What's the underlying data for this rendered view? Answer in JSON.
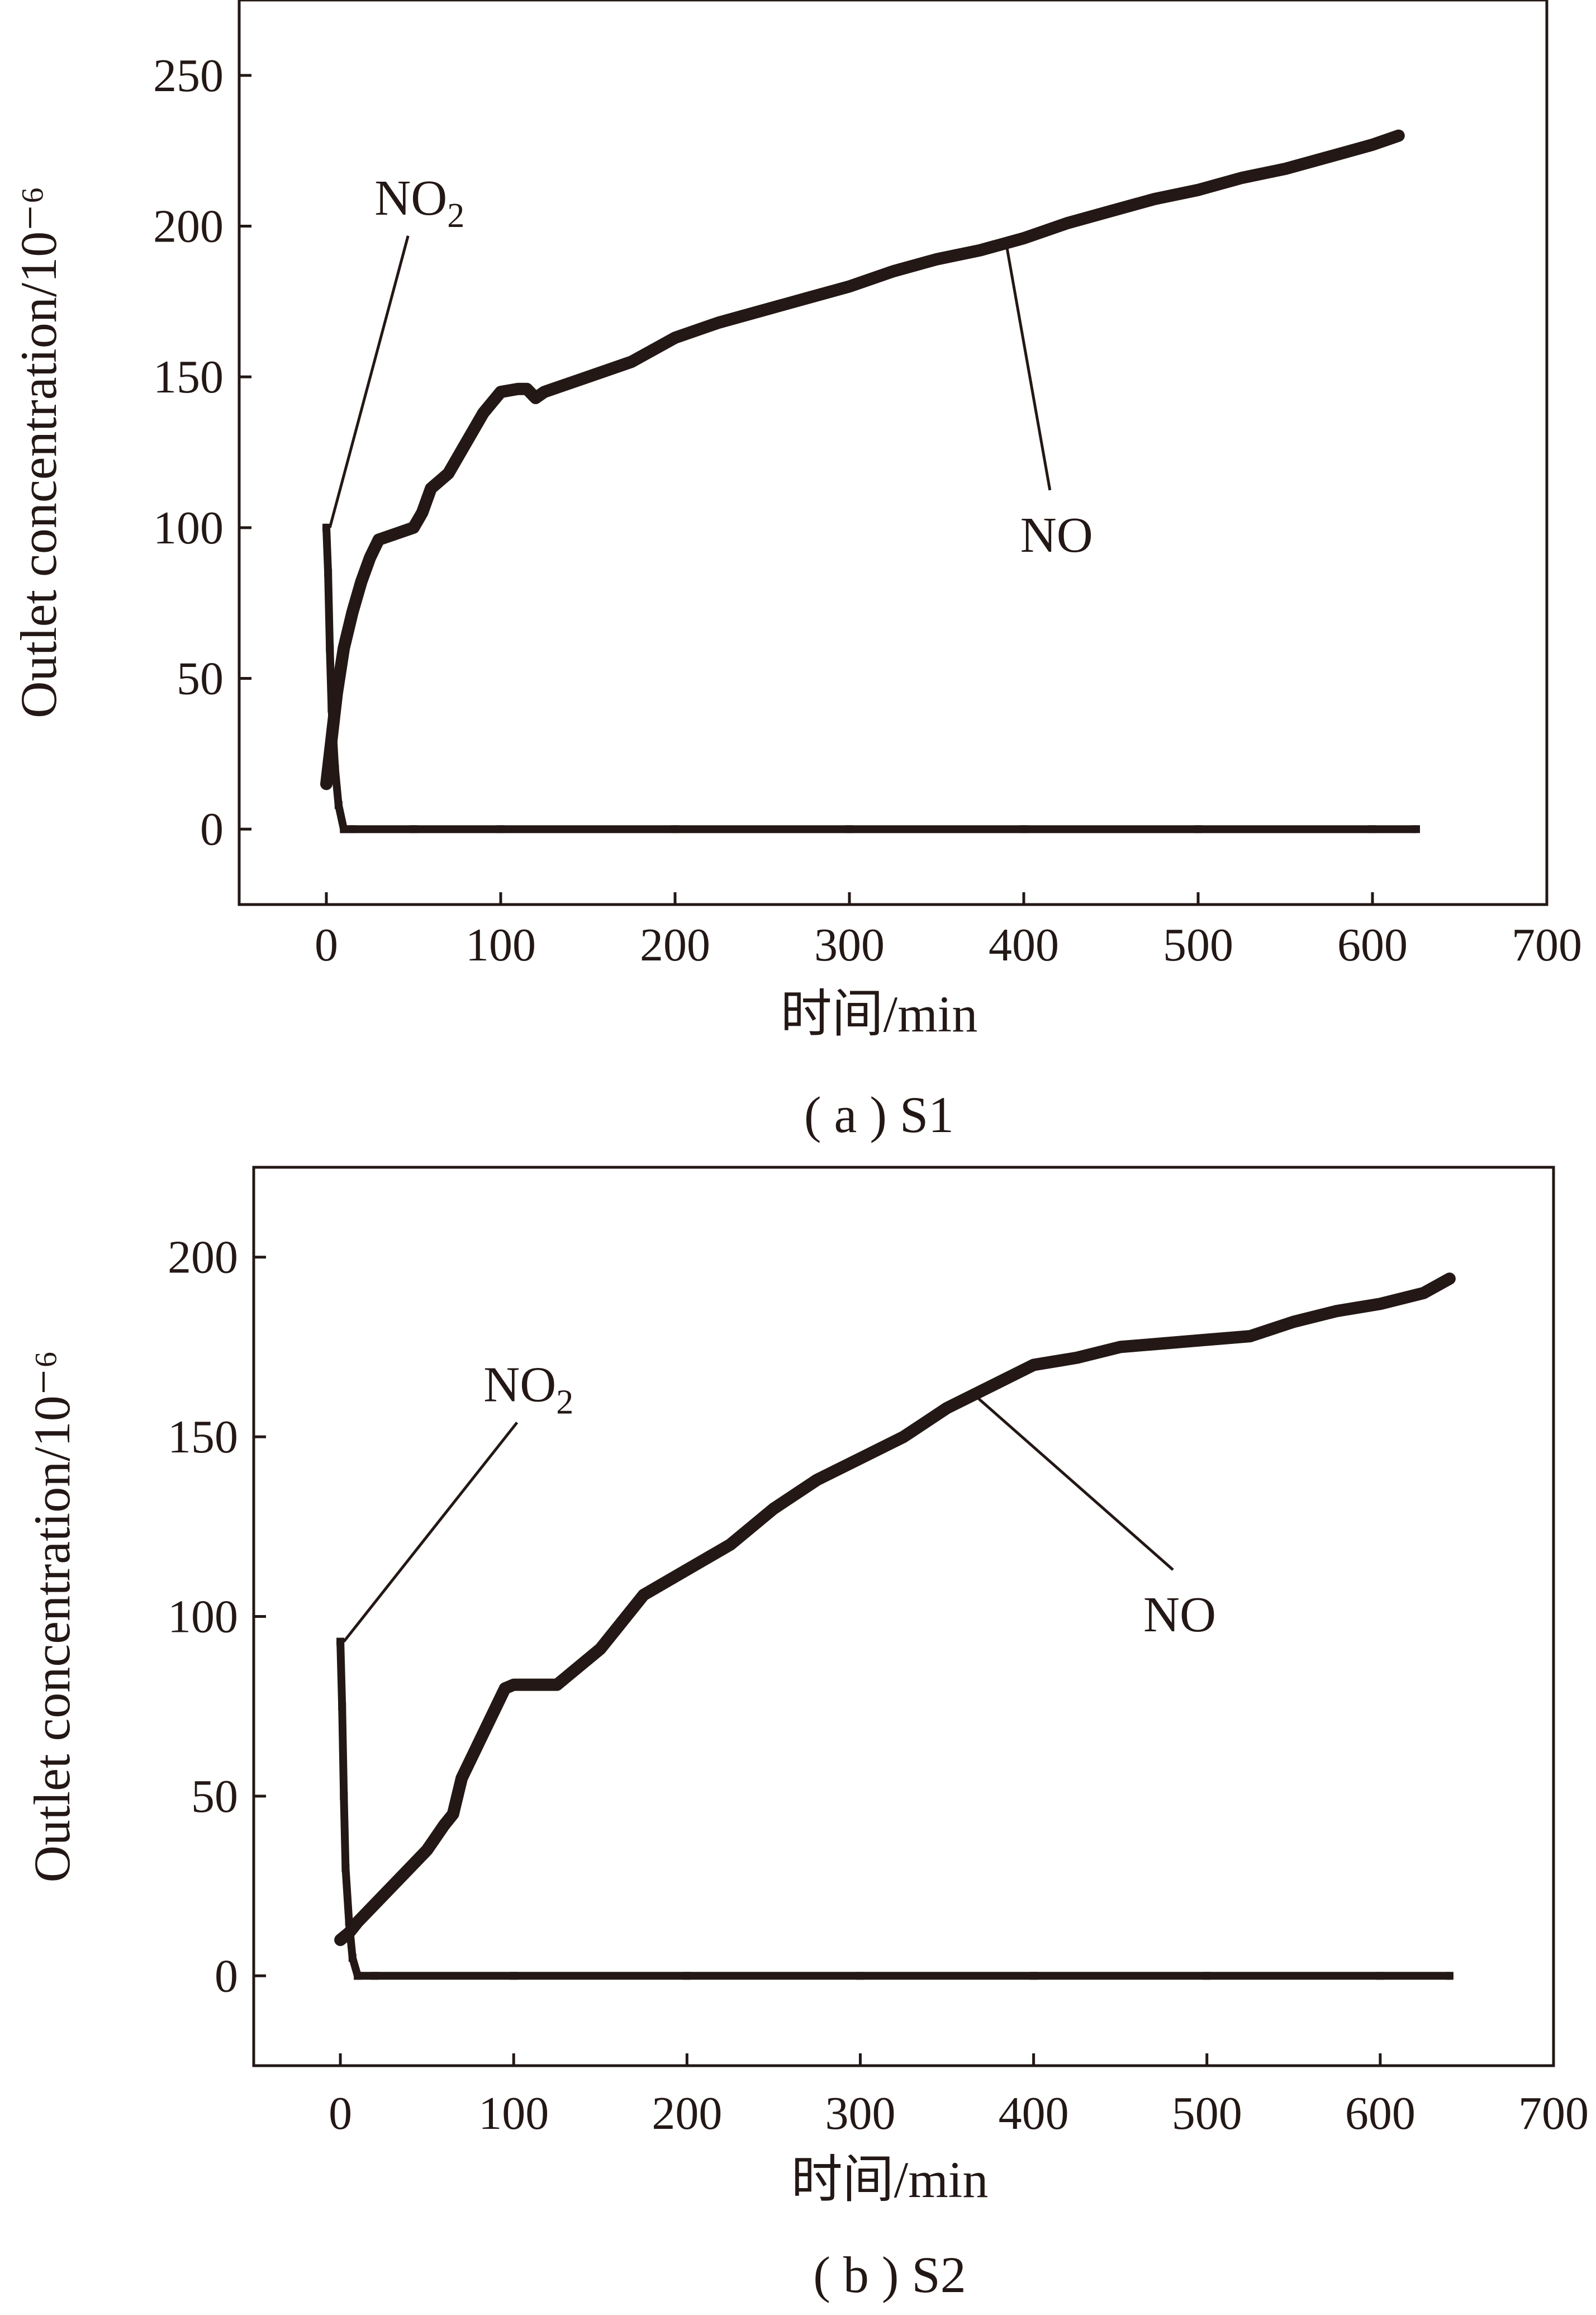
{
  "chart_data": [
    {
      "type": "line",
      "panel": "a",
      "caption": "( a ) S1",
      "xlabel": "时间/min",
      "ylabel": "Outlet concentration/10⁻⁶",
      "xlim": [
        -50,
        700
      ],
      "ylim": [
        -25,
        275
      ],
      "x_ticks": [
        0,
        100,
        200,
        300,
        400,
        500,
        600,
        700
      ],
      "y_ticks": [
        0,
        50,
        100,
        150,
        200,
        250
      ],
      "grid": false,
      "series": [
        {
          "name": "NO",
          "x": [
            0,
            3,
            6,
            10,
            15,
            20,
            25,
            30,
            40,
            50,
            55,
            60,
            70,
            80,
            90,
            100,
            110,
            115,
            120,
            125,
            130,
            150,
            175,
            200,
            225,
            250,
            275,
            300,
            325,
            350,
            375,
            400,
            425,
            450,
            475,
            500,
            525,
            550,
            575,
            600,
            615
          ],
          "y": [
            15,
            30,
            45,
            60,
            72,
            82,
            90,
            96,
            98,
            100,
            105,
            113,
            118,
            128,
            138,
            145,
            146,
            146,
            143,
            145,
            146,
            150,
            155,
            163,
            168,
            172,
            176,
            180,
            185,
            189,
            192,
            196,
            201,
            205,
            209,
            212,
            216,
            219,
            223,
            227,
            230
          ]
        },
        {
          "name": "NO2",
          "x": [
            0,
            1,
            2,
            3,
            5,
            7,
            10,
            15,
            50,
            100,
            200,
            300,
            400,
            500,
            600,
            625
          ],
          "y": [
            100,
            85,
            60,
            40,
            20,
            8,
            0,
            0,
            0,
            0,
            0,
            0,
            0,
            0,
            0,
            0
          ]
        }
      ],
      "annotations": [
        {
          "text": "NO",
          "sub": "2",
          "points_to": {
            "x": 2,
            "y": 100
          }
        },
        {
          "text": "NO",
          "sub": "",
          "points_to": {
            "x": 390,
            "y": 194
          }
        }
      ]
    },
    {
      "type": "line",
      "panel": "b",
      "caption": "( b ) S2",
      "xlabel": "时间/min",
      "ylabel": "Outlet concentration/10⁻⁶",
      "xlim": [
        -50,
        700
      ],
      "ylim": [
        -25,
        225
      ],
      "x_ticks": [
        0,
        100,
        200,
        300,
        400,
        500,
        600,
        700
      ],
      "y_ticks": [
        0,
        50,
        100,
        150,
        200
      ],
      "grid": false,
      "series": [
        {
          "name": "NO",
          "x": [
            0,
            5,
            10,
            20,
            30,
            40,
            50,
            60,
            65,
            70,
            80,
            90,
            95,
            100,
            110,
            120,
            125,
            130,
            150,
            175,
            200,
            225,
            250,
            275,
            300,
            325,
            350,
            375,
            400,
            425,
            450,
            475,
            500,
            525,
            550,
            575,
            600,
            625,
            640
          ],
          "y": [
            10,
            12,
            15,
            20,
            25,
            30,
            35,
            42,
            45,
            55,
            65,
            75,
            80,
            81,
            81,
            81,
            81,
            83,
            91,
            106,
            113,
            120,
            130,
            138,
            144,
            150,
            158,
            164,
            170,
            172,
            175,
            176,
            177,
            178,
            182,
            185,
            187,
            190,
            194
          ]
        },
        {
          "name": "NO2",
          "x": [
            0,
            1,
            2,
            3,
            5,
            7,
            10,
            20,
            100,
            200,
            300,
            400,
            500,
            600,
            640
          ],
          "y": [
            93,
            75,
            50,
            30,
            15,
            5,
            0,
            0,
            0,
            0,
            0,
            0,
            0,
            0,
            0
          ]
        }
      ],
      "annotations": [
        {
          "text": "NO",
          "sub": "2",
          "points_to": {
            "x": 2,
            "y": 93
          }
        },
        {
          "text": "NO",
          "sub": "",
          "points_to": {
            "x": 365,
            "y": 162
          }
        }
      ]
    }
  ]
}
